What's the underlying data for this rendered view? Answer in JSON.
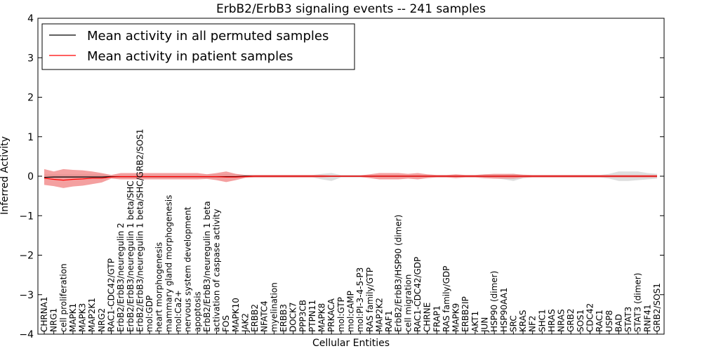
{
  "chart_data": {
    "type": "line",
    "title": "ErbB2/ErbB3 signaling events -- 241 samples",
    "xlabel": "Cellular Entities",
    "ylabel": "Inferred Activity",
    "ylim": [
      -4,
      4
    ],
    "yticks": [
      -4,
      -3,
      -2,
      -1,
      0,
      1,
      2,
      3,
      4
    ],
    "ytick_labels": [
      "−4",
      "−3",
      "−2",
      "−1",
      "0",
      "1",
      "2",
      "3",
      "4"
    ],
    "grid": false,
    "legend_position": "top-left",
    "colors": {
      "permuted": "#000000",
      "patient": "#ff0000",
      "patient_band": "#f08080",
      "permuted_band": "#c8c8c8"
    },
    "categories": [
      "CHRNA1",
      "NRG1",
      "cell proliferation",
      "MAPK1",
      "MAPK3",
      "MAP2K1",
      "NRG2",
      "RAC1-CDC42/GTP",
      "ErbB2/ErbB3/neuregulin 2",
      "ErbB2/ErbB3/neuregulin 1 beta/SHC",
      "ErbB2/ErbB3/neuregulin 1 beta/SHC/GRB2/SOS1",
      "mol:GDP",
      "heart morphogenesis",
      "mammary gland morphogenesis",
      "mol:Ca2+",
      "nervous system development",
      "apoptosis",
      "ErbB2/ErbB3/neuregulin 1 beta",
      "activation of caspase activity",
      "FOS",
      "MAPK10",
      "JAK2",
      "ERBB2",
      "NFATC4",
      "myelination",
      "ERBB3",
      "DOCK7",
      "PPP3CB",
      "PTPN11",
      "MAPK8",
      "PRKACA",
      "mol:GTP",
      "mol:cAMP",
      "mol:PI-3-4-5-P3",
      "RAS family/GTP",
      "MAP2K2",
      "RAF1",
      "ErbB2/ErbB3/HSP90 (dimer)",
      "cell migration",
      "RAC1-CDC42/GDP",
      "CHRNE",
      "FRAP1",
      "RAS family/GDP",
      "MAPK9",
      "ERBB2IP",
      "AKT1",
      "JUN",
      "HSP90 (dimer)",
      "HSP90AA1",
      "SRC",
      "KRAS",
      "NF2",
      "SHC1",
      "HRAS",
      "NRAS",
      "GRB2",
      "SOS1",
      "CDC42",
      "RAC1",
      "USP8",
      "BAD",
      "STAT3",
      "STAT3 (dimer)",
      "RNF41",
      "GRB2/SOS1"
    ],
    "series": [
      {
        "name": "Mean activity in all permuted samples",
        "values": [
          -0.03,
          -0.02,
          -0.02,
          -0.02,
          -0.02,
          -0.02,
          -0.02,
          -0.01,
          -0.01,
          -0.01,
          -0.01,
          -0.01,
          -0.01,
          -0.01,
          -0.01,
          -0.01,
          -0.01,
          -0.01,
          -0.01,
          -0.01,
          -0.01,
          0,
          0,
          0,
          0,
          0,
          0,
          0,
          0,
          0,
          0,
          0,
          0,
          0,
          0,
          0,
          0,
          0,
          0,
          0,
          0,
          0,
          0,
          0,
          0,
          0,
          0,
          0,
          0,
          0,
          0,
          0,
          0,
          0,
          0,
          0,
          0,
          0,
          0,
          0,
          0,
          0,
          0,
          0,
          0
        ]
      },
      {
        "name": "Mean activity in patient samples",
        "values": [
          -0.05,
          -0.08,
          -0.1,
          -0.08,
          -0.07,
          -0.05,
          -0.05,
          -0.02,
          -0.01,
          -0.01,
          -0.01,
          -0.01,
          -0.01,
          -0.01,
          -0.01,
          -0.01,
          -0.01,
          -0.01,
          -0.01,
          -0.02,
          -0.02,
          -0.01,
          0,
          0,
          0,
          0,
          0,
          0,
          0,
          0,
          0,
          0,
          0,
          0,
          0,
          0,
          0,
          0,
          0,
          0,
          0,
          0,
          0,
          0,
          0,
          0,
          0,
          0,
          0,
          0,
          0,
          0,
          0,
          0,
          0,
          0,
          0,
          0,
          0,
          0,
          0,
          0,
          0,
          0,
          0
        ]
      }
    ],
    "patient_band": {
      "upper": [
        0.18,
        0.12,
        0.18,
        0.16,
        0.15,
        0.12,
        0.08,
        0.03,
        0.08,
        0.08,
        0.08,
        0.08,
        0.08,
        0.08,
        0.08,
        0.08,
        0.08,
        0.05,
        0.08,
        0.12,
        0.06,
        0.03,
        0.03,
        0.03,
        0.03,
        0.03,
        0.03,
        0.03,
        0.03,
        0.03,
        0.02,
        0.02,
        0.02,
        0.02,
        0.05,
        0.08,
        0.08,
        0.08,
        0.06,
        0.08,
        0.05,
        0.03,
        0.03,
        0.05,
        0.03,
        0.03,
        0.05,
        0.06,
        0.06,
        0.06,
        0.04,
        0.03,
        0.03,
        0.03,
        0.03,
        0.03,
        0.03,
        0.03,
        0.03,
        0.03,
        0.03,
        0.03,
        0.03,
        0.03,
        0.03
      ],
      "lower": [
        -0.22,
        -0.25,
        -0.3,
        -0.26,
        -0.24,
        -0.2,
        -0.16,
        -0.06,
        -0.08,
        -0.08,
        -0.08,
        -0.08,
        -0.08,
        -0.08,
        -0.08,
        -0.08,
        -0.08,
        -0.07,
        -0.1,
        -0.15,
        -0.1,
        -0.04,
        -0.03,
        -0.03,
        -0.03,
        -0.03,
        -0.03,
        -0.03,
        -0.03,
        -0.03,
        -0.02,
        -0.02,
        -0.02,
        -0.02,
        -0.05,
        -0.08,
        -0.08,
        -0.08,
        -0.06,
        -0.08,
        -0.05,
        -0.03,
        -0.03,
        -0.05,
        -0.03,
        -0.03,
        -0.05,
        -0.06,
        -0.06,
        -0.06,
        -0.04,
        -0.03,
        -0.03,
        -0.03,
        -0.03,
        -0.03,
        -0.03,
        -0.03,
        -0.03,
        -0.03,
        -0.03,
        -0.03,
        -0.03,
        -0.03,
        -0.03
      ]
    },
    "permuted_band": {
      "upper": [
        0.05,
        0.05,
        0.05,
        0.05,
        0.05,
        0.05,
        0.05,
        0.03,
        0.03,
        0.03,
        0.03,
        0.03,
        0.03,
        0.03,
        0.03,
        0.03,
        0.03,
        0.05,
        0.05,
        0.05,
        0.05,
        0.03,
        0.03,
        0.03,
        0.03,
        0.03,
        0.03,
        0.03,
        0.03,
        0.06,
        0.08,
        0.03,
        0.03,
        0.03,
        0.03,
        0.03,
        0.03,
        0.03,
        0.03,
        0.03,
        0.03,
        0.03,
        0.03,
        0.03,
        0.03,
        0.03,
        0.05,
        0.05,
        0.05,
        0.06,
        0.03,
        0.03,
        0.03,
        0.03,
        0.03,
        0.03,
        0.03,
        0.03,
        0.03,
        0.06,
        0.12,
        0.12,
        0.12,
        0.08,
        0.06
      ],
      "lower": [
        -0.05,
        -0.05,
        -0.05,
        -0.05,
        -0.05,
        -0.05,
        -0.05,
        -0.03,
        -0.03,
        -0.03,
        -0.03,
        -0.03,
        -0.03,
        -0.03,
        -0.03,
        -0.03,
        -0.03,
        -0.05,
        -0.05,
        -0.05,
        -0.05,
        -0.03,
        -0.03,
        -0.03,
        -0.03,
        -0.03,
        -0.03,
        -0.03,
        -0.03,
        -0.08,
        -0.12,
        -0.03,
        -0.03,
        -0.03,
        -0.03,
        -0.03,
        -0.03,
        -0.03,
        -0.03,
        -0.03,
        -0.03,
        -0.03,
        -0.03,
        -0.03,
        -0.03,
        -0.03,
        -0.05,
        -0.05,
        -0.08,
        -0.12,
        -0.05,
        -0.03,
        -0.03,
        -0.03,
        -0.03,
        -0.03,
        -0.03,
        -0.03,
        -0.03,
        -0.06,
        -0.12,
        -0.12,
        -0.1,
        -0.08,
        -0.06
      ]
    }
  }
}
